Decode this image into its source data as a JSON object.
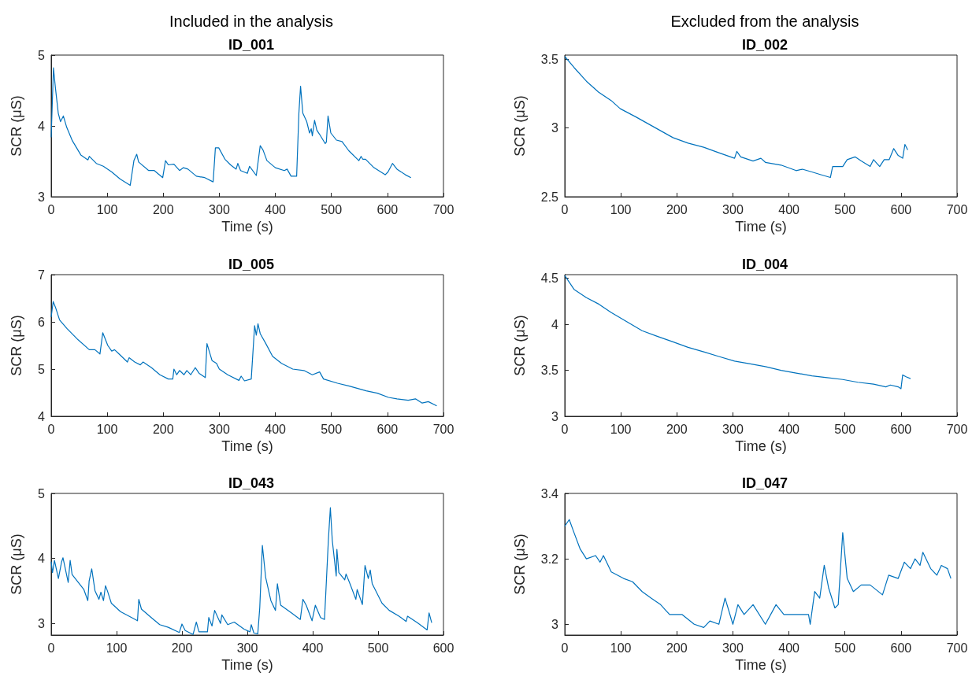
{
  "chart_data": [
    {
      "type": "line",
      "title": "ID_001",
      "annotations": [
        "Included in the analysis"
      ],
      "xlabel": "Time (s)",
      "ylabel": "SCR (μS)",
      "xlim": [
        0,
        700
      ],
      "xticks": [
        0,
        100,
        200,
        300,
        400,
        500,
        600,
        700
      ],
      "ylim": [
        3,
        5
      ],
      "yticks": [
        3,
        4,
        5
      ],
      "series": [
        {
          "color": "#0072bd",
          "x": [
            0,
            4,
            7.5,
            12.6,
            16.6,
            21.7,
            27.7,
            37.8,
            52.9,
            65.5,
            68,
            80.6,
            93,
            108,
            123,
            141,
            147.6,
            152.6,
            156,
            174,
            184,
            199,
            204,
            209,
            219,
            229,
            236,
            244,
            259,
            274,
            289,
            293,
            299,
            310,
            320,
            330,
            333,
            338,
            350,
            354,
            366,
            373,
            378,
            385,
            400,
            416,
            421,
            428,
            438,
            442,
            445,
            449,
            456,
            461,
            464,
            466,
            470,
            474,
            479,
            489,
            491,
            494,
            499,
            509,
            519,
            531,
            549,
            553,
            556,
            561,
            576,
            596,
            601,
            609,
            617,
            632,
            642
          ],
          "values": [
            3.84,
            4.82,
            4.54,
            4.18,
            4.06,
            4.14,
            3.98,
            3.79,
            3.59,
            3.52,
            3.57,
            3.47,
            3.43,
            3.35,
            3.25,
            3.16,
            3.51,
            3.6,
            3.49,
            3.37,
            3.37,
            3.27,
            3.51,
            3.45,
            3.46,
            3.37,
            3.41,
            3.39,
            3.29,
            3.27,
            3.21,
            3.69,
            3.69,
            3.53,
            3.45,
            3.39,
            3.47,
            3.37,
            3.33,
            3.43,
            3.3,
            3.72,
            3.66,
            3.51,
            3.41,
            3.37,
            3.39,
            3.29,
            3.29,
            4.18,
            4.56,
            4.18,
            4.06,
            3.9,
            3.96,
            3.86,
            4.08,
            3.94,
            3.88,
            3.75,
            3.77,
            4.14,
            3.9,
            3.8,
            3.78,
            3.65,
            3.51,
            3.57,
            3.53,
            3.53,
            3.41,
            3.31,
            3.35,
            3.47,
            3.39,
            3.31,
            3.27
          ]
        }
      ]
    },
    {
      "type": "line",
      "title": "ID_002",
      "annotations": [
        "Excluded from the analysis"
      ],
      "xlabel": "Time (s)",
      "ylabel": "SCR (μS)",
      "xlim": [
        0,
        700
      ],
      "xticks": [
        0,
        100,
        200,
        300,
        400,
        500,
        600,
        700
      ],
      "ylim": [
        2.5,
        3.53
      ],
      "yticks": [
        2.5,
        3,
        3.5
      ],
      "series": [
        {
          "color": "#0072bd",
          "x": [
            0,
            16.5,
            38.6,
            60.6,
            82.6,
            99,
            127,
            149,
            171,
            193,
            220,
            248,
            275,
            303,
            307,
            314,
            336,
            350,
            358,
            386,
            413,
            424,
            441,
            457,
            474,
            478,
            496,
            504,
            518,
            529,
            545,
            551,
            562,
            570,
            579,
            587,
            595,
            603,
            607,
            612
          ],
          "values": [
            3.52,
            3.44,
            3.34,
            3.26,
            3.2,
            3.14,
            3.08,
            3.03,
            2.98,
            2.93,
            2.89,
            2.86,
            2.82,
            2.78,
            2.83,
            2.79,
            2.76,
            2.78,
            2.75,
            2.73,
            2.69,
            2.7,
            2.68,
            2.66,
            2.64,
            2.72,
            2.72,
            2.77,
            2.79,
            2.76,
            2.72,
            2.77,
            2.72,
            2.77,
            2.77,
            2.85,
            2.8,
            2.78,
            2.88,
            2.84
          ]
        }
      ]
    },
    {
      "type": "line",
      "title": "ID_005",
      "xlabel": "Time (s)",
      "ylabel": "SCR (μS)",
      "xlim": [
        0,
        700
      ],
      "xticks": [
        0,
        100,
        200,
        300,
        400,
        500,
        600,
        700
      ],
      "ylim": [
        4,
        7
      ],
      "yticks": [
        4,
        5,
        6,
        7
      ],
      "series": [
        {
          "color": "#0072bd",
          "x": [
            0,
            3.5,
            7.6,
            15,
            28,
            48,
            68,
            78,
            87,
            92,
            101,
            108,
            113,
            121,
            136,
            139,
            149,
            159,
            164,
            179,
            194,
            209,
            217,
            219,
            224,
            229,
            237,
            242,
            249,
            257,
            264,
            275,
            278,
            287,
            295,
            300,
            315,
            335,
            339,
            345,
            357,
            363,
            366,
            369,
            373,
            383,
            395,
            411,
            431,
            451,
            466,
            479,
            486,
            511,
            532,
            562,
            582,
            602,
            617,
            637,
            650,
            662,
            673,
            688
          ],
          "values": [
            6.1,
            6.43,
            6.31,
            6.04,
            5.86,
            5.62,
            5.41,
            5.41,
            5.32,
            5.77,
            5.5,
            5.38,
            5.41,
            5.32,
            5.15,
            5.24,
            5.15,
            5.09,
            5.15,
            5.03,
            4.88,
            4.79,
            4.79,
            5,
            4.88,
            4.97,
            4.88,
            4.97,
            4.88,
            5.03,
            4.91,
            4.82,
            5.54,
            5.18,
            5.12,
            5,
            4.88,
            4.76,
            4.85,
            4.75,
            4.79,
            5.92,
            5.72,
            5.96,
            5.75,
            5.54,
            5.27,
            5.12,
            5,
            4.97,
            4.88,
            4.94,
            4.79,
            4.7,
            4.64,
            4.54,
            4.49,
            4.4,
            4.37,
            4.34,
            4.37,
            4.28,
            4.31,
            4.22
          ]
        }
      ]
    },
    {
      "type": "line",
      "title": "ID_004",
      "xlabel": "Time (s)",
      "ylabel": "SCR (μS)",
      "xlim": [
        0,
        700
      ],
      "xticks": [
        0,
        100,
        200,
        300,
        400,
        500,
        600,
        700
      ],
      "ylim": [
        3,
        4.54
      ],
      "yticks": [
        3,
        3.5,
        4,
        4.5
      ],
      "series": [
        {
          "color": "#0072bd",
          "x": [
            0,
            16.5,
            38.6,
            60.6,
            82.6,
            110,
            138,
            165,
            193,
            220,
            248,
            275,
            303,
            331,
            358,
            386,
            413,
            441,
            468,
            496,
            523,
            551,
            573,
            581,
            595,
            600,
            603,
            609,
            617
          ],
          "values": [
            4.53,
            4.38,
            4.29,
            4.22,
            4.13,
            4.03,
            3.93,
            3.87,
            3.81,
            3.75,
            3.7,
            3.65,
            3.6,
            3.57,
            3.54,
            3.5,
            3.47,
            3.44,
            3.42,
            3.4,
            3.37,
            3.35,
            3.32,
            3.34,
            3.32,
            3.3,
            3.45,
            3.43,
            3.41
          ]
        }
      ]
    },
    {
      "type": "line",
      "title": "ID_043",
      "xlabel": "Time (s)",
      "ylabel": "SCR (μS)",
      "xlim": [
        0,
        600
      ],
      "xticks": [
        0,
        100,
        200,
        300,
        400,
        500,
        600
      ],
      "ylim": [
        2.82,
        5
      ],
      "yticks": [
        3,
        4,
        5
      ],
      "series": [
        {
          "color": "#0072bd",
          "x": [
            0,
            2,
            5,
            11,
            16,
            18,
            26,
            29,
            32,
            50,
            56,
            58,
            62,
            67,
            73,
            76,
            80,
            83,
            86,
            92,
            106,
            123,
            132,
            134,
            138,
            153,
            166,
            179,
            196,
            200,
            205,
            217,
            222,
            226,
            239,
            241,
            246,
            250,
            259,
            261,
            270,
            280,
            295,
            304,
            306,
            310,
            316,
            319,
            323,
            328,
            336,
            343,
            346,
            351,
            369,
            381,
            385,
            390,
            399,
            404,
            412,
            418,
            420,
            424,
            427,
            430,
            436,
            437,
            440,
            449,
            451,
            457,
            466,
            468,
            476,
            480,
            485,
            488,
            491,
            506,
            517,
            532,
            543,
            545,
            560,
            575,
            578,
            582
          ],
          "values": [
            3.95,
            3.78,
            3.97,
            3.69,
            3.95,
            4.01,
            3.63,
            3.97,
            3.75,
            3.52,
            3.35,
            3.65,
            3.84,
            3.5,
            3.37,
            3.48,
            3.35,
            3.58,
            3.5,
            3.31,
            3.18,
            3.09,
            3.04,
            3.37,
            3.22,
            3.09,
            2.98,
            2.94,
            2.86,
            2.99,
            2.89,
            2.83,
            3.02,
            2.87,
            2.87,
            3.09,
            2.96,
            3.2,
            3,
            3.13,
            2.98,
            3.02,
            2.91,
            2.87,
            2.98,
            2.85,
            2.84,
            3.24,
            4.2,
            3.71,
            3.35,
            3.2,
            3.61,
            3.28,
            3.15,
            3.06,
            3.37,
            3.28,
            3.04,
            3.28,
            3.09,
            3.06,
            3.46,
            4.29,
            4.78,
            4.27,
            3.73,
            4.14,
            3.78,
            3.67,
            3.76,
            3.61,
            3.37,
            3.52,
            3.29,
            3.89,
            3.69,
            3.82,
            3.61,
            3.31,
            3.2,
            3.11,
            3.03,
            3.11,
            3.01,
            2.9,
            3.16,
            3.01
          ]
        }
      ]
    },
    {
      "type": "line",
      "title": "ID_047",
      "xlabel": "Time (s)",
      "ylabel": "SCR (μS)",
      "xlim": [
        0,
        700
      ],
      "xticks": [
        0,
        100,
        200,
        300,
        400,
        500,
        600,
        700
      ],
      "ylim": [
        2.967,
        3.4
      ],
      "yticks": [
        3,
        3.2,
        3.4
      ],
      "series": [
        {
          "color": "#0072bd",
          "x": [
            0,
            8,
            16.5,
            27.5,
            38.6,
            55,
            63,
            69,
            83,
            105,
            121,
            138,
            154,
            171,
            187,
            209,
            231,
            248,
            259,
            275,
            286,
            300,
            309,
            320,
            336,
            358,
            377,
            391,
            413,
            435,
            438,
            446,
            455,
            463,
            471,
            482,
            488,
            496,
            504,
            515,
            529,
            545,
            567,
            578,
            595,
            606,
            617,
            625,
            634,
            639,
            653,
            664,
            672,
            683,
            689
          ],
          "values": [
            3.3,
            3.32,
            3.28,
            3.23,
            3.2,
            3.21,
            3.19,
            3.21,
            3.16,
            3.14,
            3.13,
            3.1,
            3.08,
            3.06,
            3.03,
            3.03,
            3,
            2.99,
            3.01,
            3,
            3.08,
            3,
            3.06,
            3.03,
            3.06,
            3,
            3.06,
            3.03,
            3.03,
            3.03,
            3,
            3.1,
            3.08,
            3.18,
            3.11,
            3.05,
            3.06,
            3.28,
            3.14,
            3.1,
            3.12,
            3.12,
            3.09,
            3.15,
            3.14,
            3.19,
            3.17,
            3.2,
            3.18,
            3.22,
            3.17,
            3.15,
            3.18,
            3.17,
            3.14
          ]
        }
      ]
    }
  ]
}
